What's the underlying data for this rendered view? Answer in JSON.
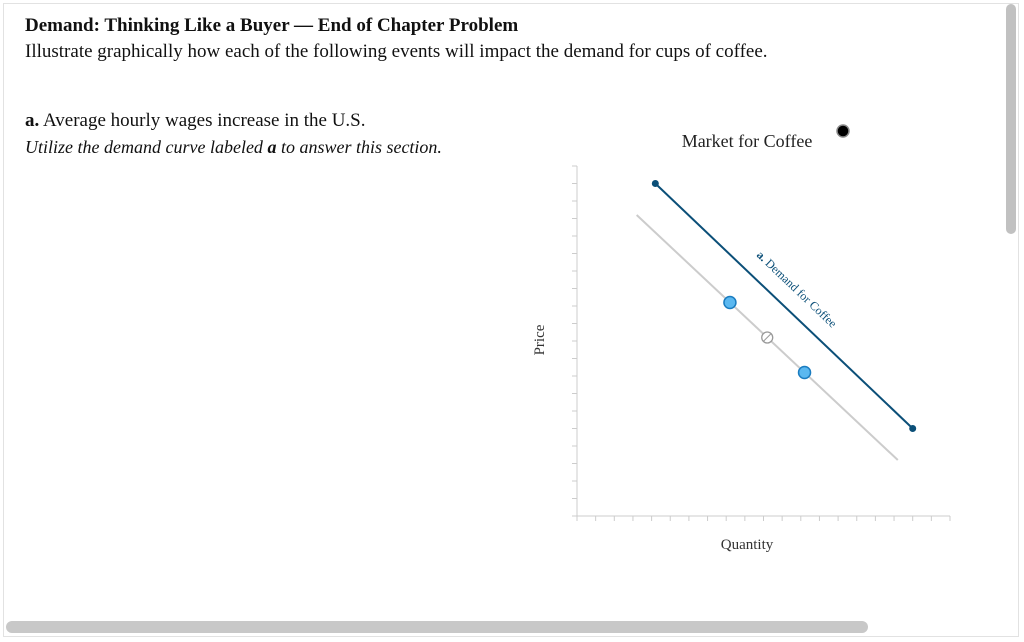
{
  "header": {
    "title": "Demand: Thinking Like a Buyer — End of Chapter Problem",
    "subtitle": "Illustrate graphically how each of the following events will impact the demand for cups of coffee."
  },
  "part_a": {
    "letter": "a.",
    "text": "Average hourly wages increase in the U.S.",
    "instruction_pre": "Utilize the demand curve labeled",
    "instruction_bold": "a",
    "instruction_post": "to answer this section."
  },
  "colors": {
    "demand_line": "#0b4f78",
    "original_line": "#cccccc",
    "handle_fill": "#5bb8f0",
    "handle_stroke": "#1a7cc0",
    "axis": "#cccccc",
    "selector": "#000000"
  },
  "icons": {
    "selector": "black-dot-icon",
    "midpoint_handle": "hollow-circle-icon",
    "endpoint_handle": "blue-circle-icon"
  },
  "chart_data": {
    "type": "line",
    "title": "Market for Coffee",
    "xlabel": "Quantity",
    "ylabel": "Price",
    "xlim": [
      0,
      10
    ],
    "ylim": [
      0,
      10
    ],
    "grid": false,
    "tick_labels": false,
    "series": [
      {
        "name": "a. Demand for Coffee",
        "style": "solid-dark-blue",
        "points": [
          [
            2.1,
            9.5
          ],
          [
            9.0,
            2.5
          ]
        ]
      },
      {
        "name": "",
        "style": "light-gray",
        "points": [
          [
            1.6,
            8.6
          ],
          [
            8.6,
            1.6
          ]
        ]
      }
    ],
    "handles": [
      {
        "role": "endpoint",
        "x": 4.1,
        "y": 6.1
      },
      {
        "role": "midpoint",
        "x": 5.1,
        "y": 5.1
      },
      {
        "role": "endpoint",
        "x": 6.1,
        "y": 4.1
      }
    ]
  }
}
